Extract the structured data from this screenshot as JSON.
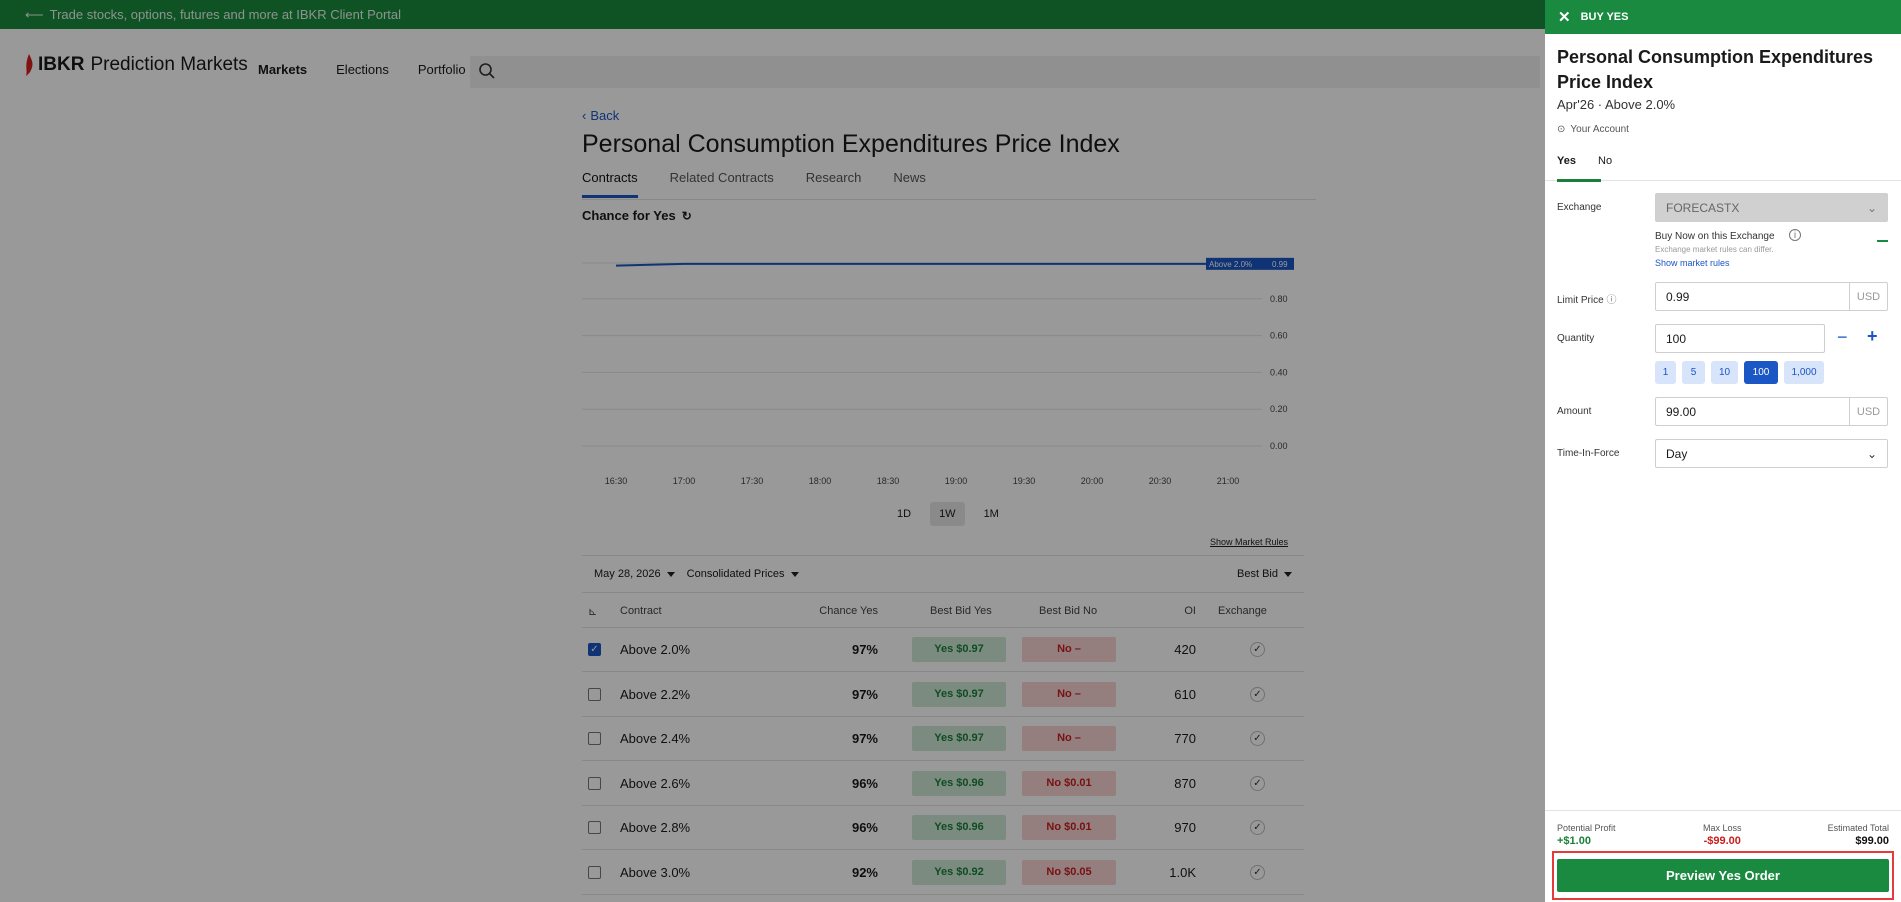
{
  "banner": {
    "text": "Trade stocks, options, futures and more at IBKR Client Portal"
  },
  "brand": {
    "ibkr": "IBKR",
    "product": "Prediction Markets"
  },
  "nav": {
    "items": [
      "Markets",
      "Elections",
      "Portfolio"
    ]
  },
  "page": {
    "back": "Back",
    "title": "Personal Consumption Expenditures Price Index",
    "tabs": [
      "Contracts",
      "Related Contracts",
      "Research",
      "News"
    ],
    "chance_label": "Chance for Yes"
  },
  "chart_data": {
    "type": "line",
    "series": [
      {
        "name": "Above 2.0%",
        "x": [
          "16:30",
          "17:00",
          "17:30",
          "18:00",
          "18:30",
          "19:00",
          "19:30",
          "20:00",
          "20:30",
          "21:00"
        ],
        "values": [
          0.98,
          0.99,
          0.99,
          0.99,
          0.99,
          0.99,
          0.99,
          0.99,
          0.99,
          0.99
        ]
      }
    ],
    "last_label": "0.99",
    "y_ticks": [
      "0.80",
      "0.60",
      "0.40",
      "0.20",
      "0.00"
    ],
    "x_ticks": [
      "16:30",
      "17:00",
      "17:30",
      "18:00",
      "18:30",
      "19:00",
      "19:30",
      "20:00",
      "20:30",
      "21:00"
    ],
    "ylim": [
      0,
      1
    ]
  },
  "ranges": [
    "1D",
    "1W",
    "1M"
  ],
  "show_market_rules": "Show Market Rules",
  "filters": {
    "date": "May 28, 2026",
    "prices": "Consolidated Prices",
    "sort": "Best Bid"
  },
  "table": {
    "headers": {
      "contract": "Contract",
      "chance": "Chance Yes",
      "bid_yes": "Best Bid Yes",
      "bid_no": "Best Bid No",
      "oi": "OI",
      "exchange": "Exchange"
    },
    "rows": [
      {
        "label": "Above 2.0%",
        "chance": "97%",
        "yes": "Yes  $0.97",
        "no": "No  –",
        "oi": "420",
        "checked": true
      },
      {
        "label": "Above 2.2%",
        "chance": "97%",
        "yes": "Yes  $0.97",
        "no": "No  –",
        "oi": "610",
        "checked": false
      },
      {
        "label": "Above 2.4%",
        "chance": "97%",
        "yes": "Yes  $0.97",
        "no": "No  –",
        "oi": "770",
        "checked": false
      },
      {
        "label": "Above 2.6%",
        "chance": "96%",
        "yes": "Yes  $0.96",
        "no": "No  $0.01",
        "oi": "870",
        "checked": false
      },
      {
        "label": "Above 2.8%",
        "chance": "96%",
        "yes": "Yes  $0.96",
        "no": "No  $0.01",
        "oi": "970",
        "checked": false
      },
      {
        "label": "Above 3.0%",
        "chance": "92%",
        "yes": "Yes  $0.92",
        "no": "No  $0.05",
        "oi": "1.0K",
        "checked": false
      }
    ]
  },
  "order": {
    "header": "BUY YES",
    "title": "Personal Consumption Expenditures Price Index",
    "subtitle": "Apr'26 · Above 2.0%",
    "account": "Your Account",
    "tabs": [
      "Yes",
      "No"
    ],
    "exchange_label": "Exchange",
    "exchange_value": "FORECASTX",
    "buy_now": "Buy Now on this Exchange",
    "buy_now_note": "Exchange market rules can differ.",
    "show_rules": "Show market rules",
    "limit_label": "Limit Price",
    "limit_value": "0.99",
    "currency": "USD",
    "qty_label": "Quantity",
    "qty_value": "100",
    "qty_presets": [
      "1",
      "5",
      "10",
      "100",
      "1,000"
    ],
    "amount_label": "Amount",
    "amount_value": "99.00",
    "tif_label": "Time-In-Force",
    "tif_value": "Day",
    "profit_label": "Potential Profit",
    "profit_value": "+$1.00",
    "loss_label": "Max Loss",
    "loss_value": "-$99.00",
    "total_label": "Estimated Total",
    "total_value": "$99.00",
    "preview_button": "Preview Yes Order"
  },
  "colors": {
    "brand_green": "#198a3f",
    "accent_blue": "#1a56c4",
    "loss_red": "#c81e1e"
  }
}
